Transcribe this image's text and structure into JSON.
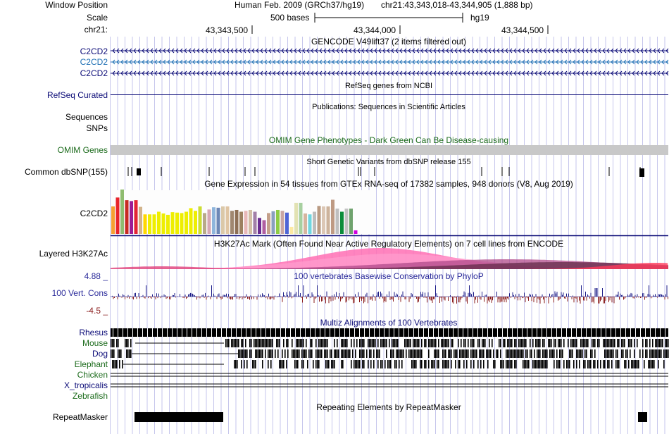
{
  "header": {
    "window_position_label": "Window Position",
    "scale_label": "Scale",
    "chrom_label": "chr21:",
    "assembly": "Human Feb. 2009 (GRCh37/hg19)",
    "position": "chr21:43,343,018-43,344,905 (1,888 bp)",
    "scale_text": "500 bases",
    "scale_db": "hg19",
    "ticks": [
      "43,343,500",
      "43,344,000",
      "43,344,500"
    ]
  },
  "tracks": {
    "gencode": {
      "title": "GENCODE V49lift37 (2 items filtered out)",
      "items": [
        "C2CD2",
        "C2CD2",
        "C2CD2"
      ],
      "colors": [
        "#0c0c78",
        "#1e6fb4",
        "#0c0c78"
      ]
    },
    "refseq": {
      "label": "RefSeq Curated",
      "title": "RefSeq genes from NCBI"
    },
    "publications": {
      "title": "Publications: Sequences in Scientific Articles",
      "label1": "Sequences",
      "label2": "SNPs"
    },
    "omim": {
      "label": "OMIM Genes",
      "title": "OMIM Gene Phenotypes - Dark Green Can Be Disease-causing"
    },
    "dbsnp": {
      "label": "Common dbSNP(155)",
      "title": "Short Genetic Variants from dbSNP release 155"
    },
    "gtex": {
      "label": "C2CD2",
      "title": "Gene Expression in 54 tissues from GTEx RNA-seq of 17382 samples, 948 donors (V8, Aug 2019)",
      "values": [
        0.62,
        0.82,
        1.0,
        0.76,
        0.74,
        0.76,
        0.61,
        0.44,
        0.44,
        0.44,
        0.5,
        0.46,
        0.43,
        0.49,
        0.48,
        0.47,
        0.5,
        0.58,
        0.52,
        0.62,
        0.47,
        0.55,
        0.6,
        0.59,
        0.62,
        0.62,
        0.52,
        0.54,
        0.5,
        0.52,
        0.54,
        0.5,
        0.36,
        0.31,
        0.47,
        0.51,
        0.54,
        0.52,
        0.48,
        0.16,
        0.7,
        0.7,
        0.46,
        0.44,
        0.5,
        0.63,
        0.62,
        0.62,
        0.77,
        0.57,
        0.5,
        0.57,
        0.57,
        0.08
      ],
      "colors": [
        "#f5a033",
        "#e8232b",
        "#8fbc6f",
        "#c72a22",
        "#9c1c96",
        "#e32535",
        "#d2b48c",
        "#ffd700",
        "#eeee00",
        "#eeee00",
        "#eeee00",
        "#eeee00",
        "#eeee00",
        "#eeee00",
        "#eeee00",
        "#eeee00",
        "#eeee00",
        "#eeee00",
        "#eeee00",
        "#ccdd33",
        "#b8a989",
        "#d6a8b5",
        "#8eb5dc",
        "#6d87b6",
        "#dbc8a8",
        "#e0c5a3",
        "#a08770",
        "#8e6f55",
        "#9c8060",
        "#e8b8b8",
        "#d3bfa5",
        "#a27fa8",
        "#6b2c91",
        "#b05fa1",
        "#c4a08a",
        "#8aa0be",
        "#8ecc44",
        "#c9a6a3",
        "#4e65d6",
        "#fce9a3",
        "#e2e2b3",
        "#a7d0a0",
        "#d6b59f",
        "#6fd6e0",
        "#bdbdbd",
        "#b99a82",
        "#dcc7b5",
        "#cdb39c",
        "#be9a83",
        "#bfbfbf",
        "#0c8c3a",
        "#c2c2c2",
        "#6fa36e",
        "#d100e0"
      ]
    },
    "h3k27ac": {
      "label": "Layered H3K27Ac",
      "title": "H3K27Ac Mark (Often Found Near Active Regulatory Elements) on 7 cell lines from ENCODE"
    },
    "conservation": {
      "label": "100 Vert. Cons",
      "title": "100 vertebrates Basewise Conservation by PhyloP",
      "max": "4.88 _",
      "min": "-4.5 _"
    },
    "multiz": {
      "title": "Multiz Alignments of 100 Vertebrates",
      "species": [
        "Rhesus",
        "Mouse",
        "Dog",
        "Elephant",
        "Chicken",
        "X_tropicalis",
        "Zebrafish"
      ],
      "colors": [
        "#0c0c78",
        "#1c6b1c",
        "#0c0c78",
        "#1c6b1c",
        "#1c6b1c",
        "#0c0c78",
        "#1c6b1c"
      ]
    },
    "repeatmasker": {
      "label": "RepeatMasker",
      "title": "Repeating Elements by RepeatMasker"
    }
  },
  "colors": {
    "navy": "#0c0c78",
    "green": "#1c6b1c",
    "grid": "#c6c6ec",
    "omim_bar": "#c8c8c8",
    "cons_pos": "#1c1c88",
    "cons_neg": "#8a1c1c",
    "h3_pink": "#ff6eb4"
  }
}
